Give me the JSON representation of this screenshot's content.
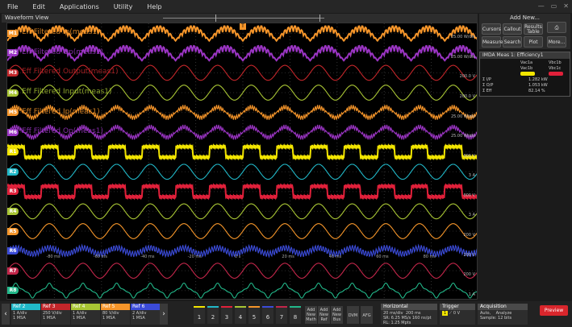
{
  "menu": [
    "File",
    "Edit",
    "Applications",
    "Utility",
    "Help"
  ],
  "window_controls": [
    "—",
    "▭",
    "✕"
  ],
  "waveform_view": {
    "title": "Waveform View",
    "trigger_marker": "T"
  },
  "traces": [
    {
      "id": "M1",
      "label": "Eff Filtered Ip(meas1)",
      "color": "#f5952a",
      "scale": "25.00 W/div",
      "shape": "hump"
    },
    {
      "id": "M2",
      "label": "Eff Filtered Op(meas1)",
      "color": "#9b35c4",
      "scale": "25.00 W/div",
      "shape": "hump"
    },
    {
      "id": "M3",
      "label": "Eff Filtered Output(meas1)",
      "color": "#c2262a",
      "scale": "200.0 V",
      "shape": "sine"
    },
    {
      "id": "M4",
      "label": "Eff Filtered Input(meas1)",
      "color": "#a8c534",
      "scale": "200.0 V",
      "shape": "sine"
    },
    {
      "id": "M5",
      "label": "Eff Filtered Ip(meas1)",
      "color": "#f5952a",
      "scale": "25.00 W/div",
      "shape": "spiky"
    },
    {
      "id": "M6",
      "label": "Eff Filtered Op(meas1)",
      "color": "#9b35c4",
      "scale": "25.00 W/div",
      "shape": "spiky"
    },
    {
      "id": "R1",
      "label": "",
      "color": "#f2e500",
      "scale": "600 V",
      "shape": "square"
    },
    {
      "id": "R2",
      "label": "",
      "color": "#21b8c8",
      "scale": "3 A",
      "shape": "sine"
    },
    {
      "id": "R3",
      "label": "",
      "color": "#e0203a",
      "scale": "600 V",
      "shape": "square"
    },
    {
      "id": "R4",
      "label": "",
      "color": "#a8c534",
      "scale": "3 A",
      "shape": "sine"
    },
    {
      "id": "R5",
      "label": "",
      "color": "#f5952a",
      "scale": "200 V",
      "shape": "sine"
    },
    {
      "id": "R6",
      "label": "",
      "color": "#3b4bd8",
      "scale": "200 V",
      "shape": "noisy"
    },
    {
      "id": "R7",
      "label": "",
      "color": "#c2264a",
      "scale": "200 V",
      "shape": "sine"
    },
    {
      "id": "R8",
      "label": "",
      "color": "#22b88a",
      "scale": "1 A",
      "shape": "pulse"
    }
  ],
  "time_ticks": [
    "-80 ms",
    "-60 ms",
    "-40 ms",
    "-20 ms",
    "0 s",
    "20 ms",
    "40 ms",
    "60 ms",
    "80 ms"
  ],
  "add_new": {
    "title": "Add New...",
    "buttons": [
      "Cursors",
      "Callout",
      "Results Table",
      "Measure",
      "Search",
      "Plot",
      "More..."
    ]
  },
  "meas_panel": {
    "title": "IMDA Meas 1: Efficiency1",
    "col1": "Vac1a",
    "col2": "Vbc1b",
    "sub1": "Vac1b",
    "sub2": "Vbc1c",
    "rows": [
      {
        "k": "Σ I/P",
        "v": "1.282 kW"
      },
      {
        "k": "Σ O/P",
        "v": "1.053 kW"
      },
      {
        "k": "Σ Eff",
        "v": "82.14 %"
      }
    ]
  },
  "refs": [
    {
      "name": "Ref 2",
      "color": "#21b8c8",
      "l1": "1 A/div",
      "l2": "1 MSA"
    },
    {
      "name": "Ref 3",
      "color": "#c2262a",
      "l1": "250 V/div",
      "l2": "1 MSA"
    },
    {
      "name": "Ref 4",
      "color": "#a8c534",
      "l1": "1 A/div",
      "l2": "1 MSA"
    },
    {
      "name": "Ref 5",
      "color": "#f5952a",
      "l1": "80 V/div",
      "l2": "1 MSA"
    },
    {
      "name": "Ref 6",
      "color": "#3b4bd8",
      "l1": "2 A/div",
      "l2": "1 MSA"
    }
  ],
  "channel_buttons": [
    "1",
    "2",
    "3",
    "4",
    "5",
    "6",
    "7",
    "8"
  ],
  "add_buttons": [
    "Add New Math",
    "Add New Ref",
    "Add New Bus"
  ],
  "tool_buttons": [
    "DVM",
    "AFG"
  ],
  "horizontal": {
    "title": "Horizontal",
    "l1": "20 ms/div",
    "l1b": "200 ms",
    "l2": "SR: 6.25 MS/s",
    "l2b": "160 ns/pt",
    "l3": "RL: 1.25 Mpts"
  },
  "trigger": {
    "title": "Trigger",
    "ch": "1",
    "level": "0 V"
  },
  "acquisition": {
    "title": "Acquisition",
    "l1": "Auto,",
    "l1b": "Analyze",
    "l2": "Sample: 12 bits"
  },
  "preview": "Preview"
}
